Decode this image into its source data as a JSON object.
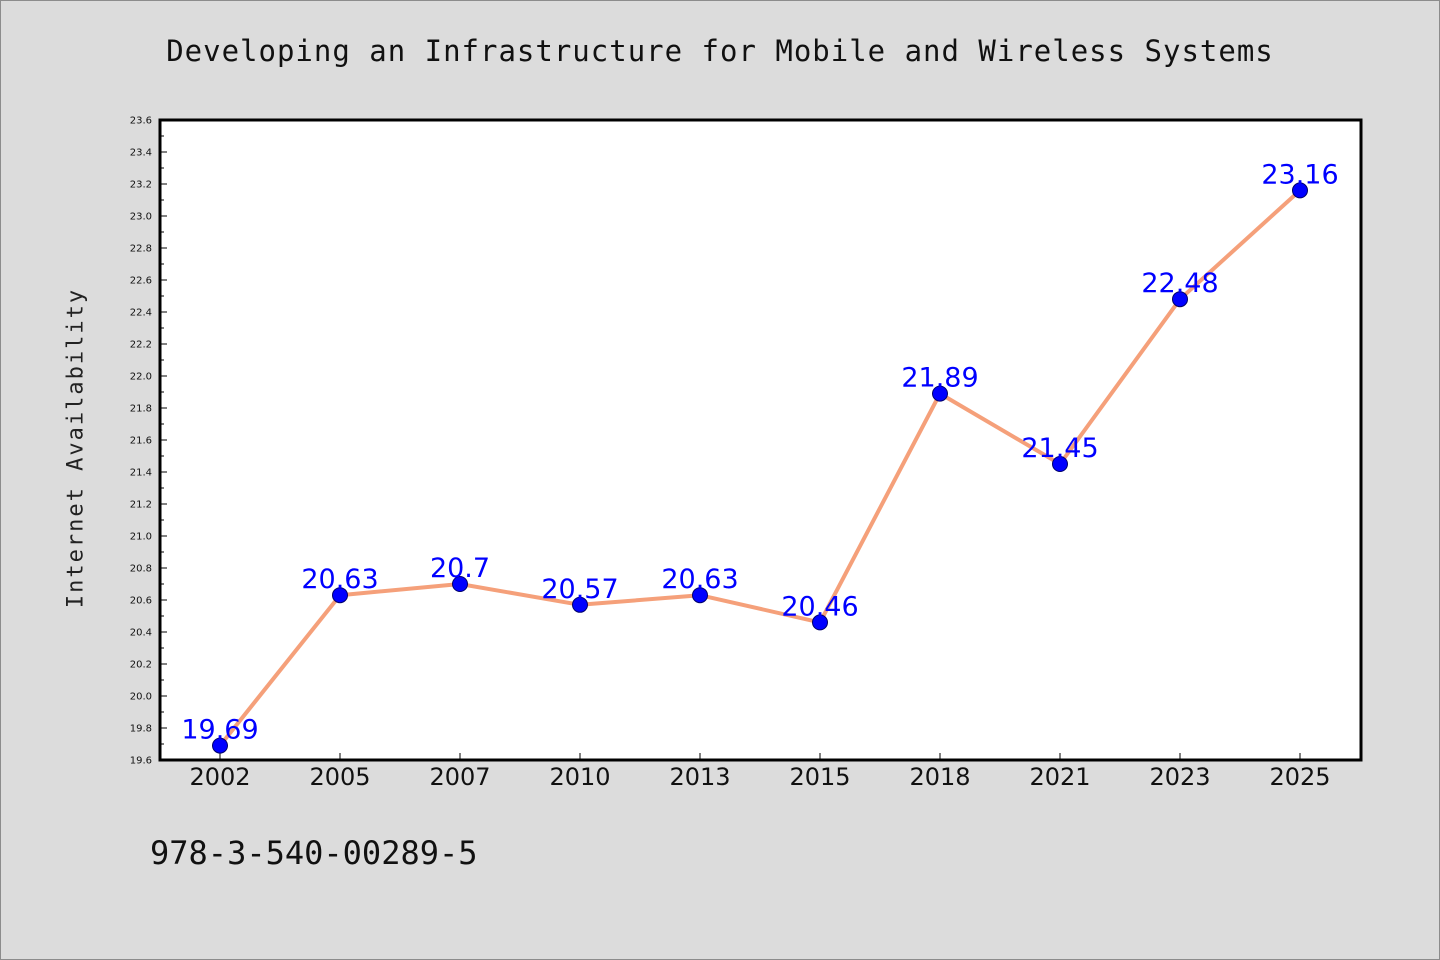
{
  "chart_data": {
    "type": "line",
    "title": "Developing an Infrastructure for Mobile and Wireless Systems",
    "xlabel": "",
    "ylabel": "Internet Availability",
    "categories": [
      "2002",
      "2005",
      "2007",
      "2010",
      "2013",
      "2015",
      "2018",
      "2021",
      "2023",
      "2025"
    ],
    "series": [
      {
        "values": [
          19.69,
          20.63,
          20.7,
          20.57,
          20.63,
          20.46,
          21.89,
          21.45,
          22.48,
          23.16
        ],
        "labels": [
          "19.69",
          "20.63",
          "20.7",
          "20.57",
          "20.63",
          "20.46",
          "21.89",
          "21.45",
          "22.48",
          "23.16"
        ]
      }
    ],
    "ylim": [
      19.6,
      23.6
    ],
    "yticks": [
      "19.6",
      "19.8",
      "20.0",
      "20.2",
      "20.4",
      "20.6",
      "20.8",
      "21.0",
      "21.2",
      "21.4",
      "21.6",
      "21.8",
      "22.0",
      "22.2",
      "22.4",
      "22.6",
      "22.8",
      "23.0",
      "23.2",
      "23.4",
      "23.6"
    ],
    "grid": false,
    "legend": "none"
  },
  "footer": {
    "code": "978-3-540-00289-5"
  },
  "colors": {
    "background": "#dcdcdc",
    "plot_background": "#ffffff",
    "line": "#f5a07a",
    "marker": "#0000ff",
    "data_label": "#0000ff"
  }
}
